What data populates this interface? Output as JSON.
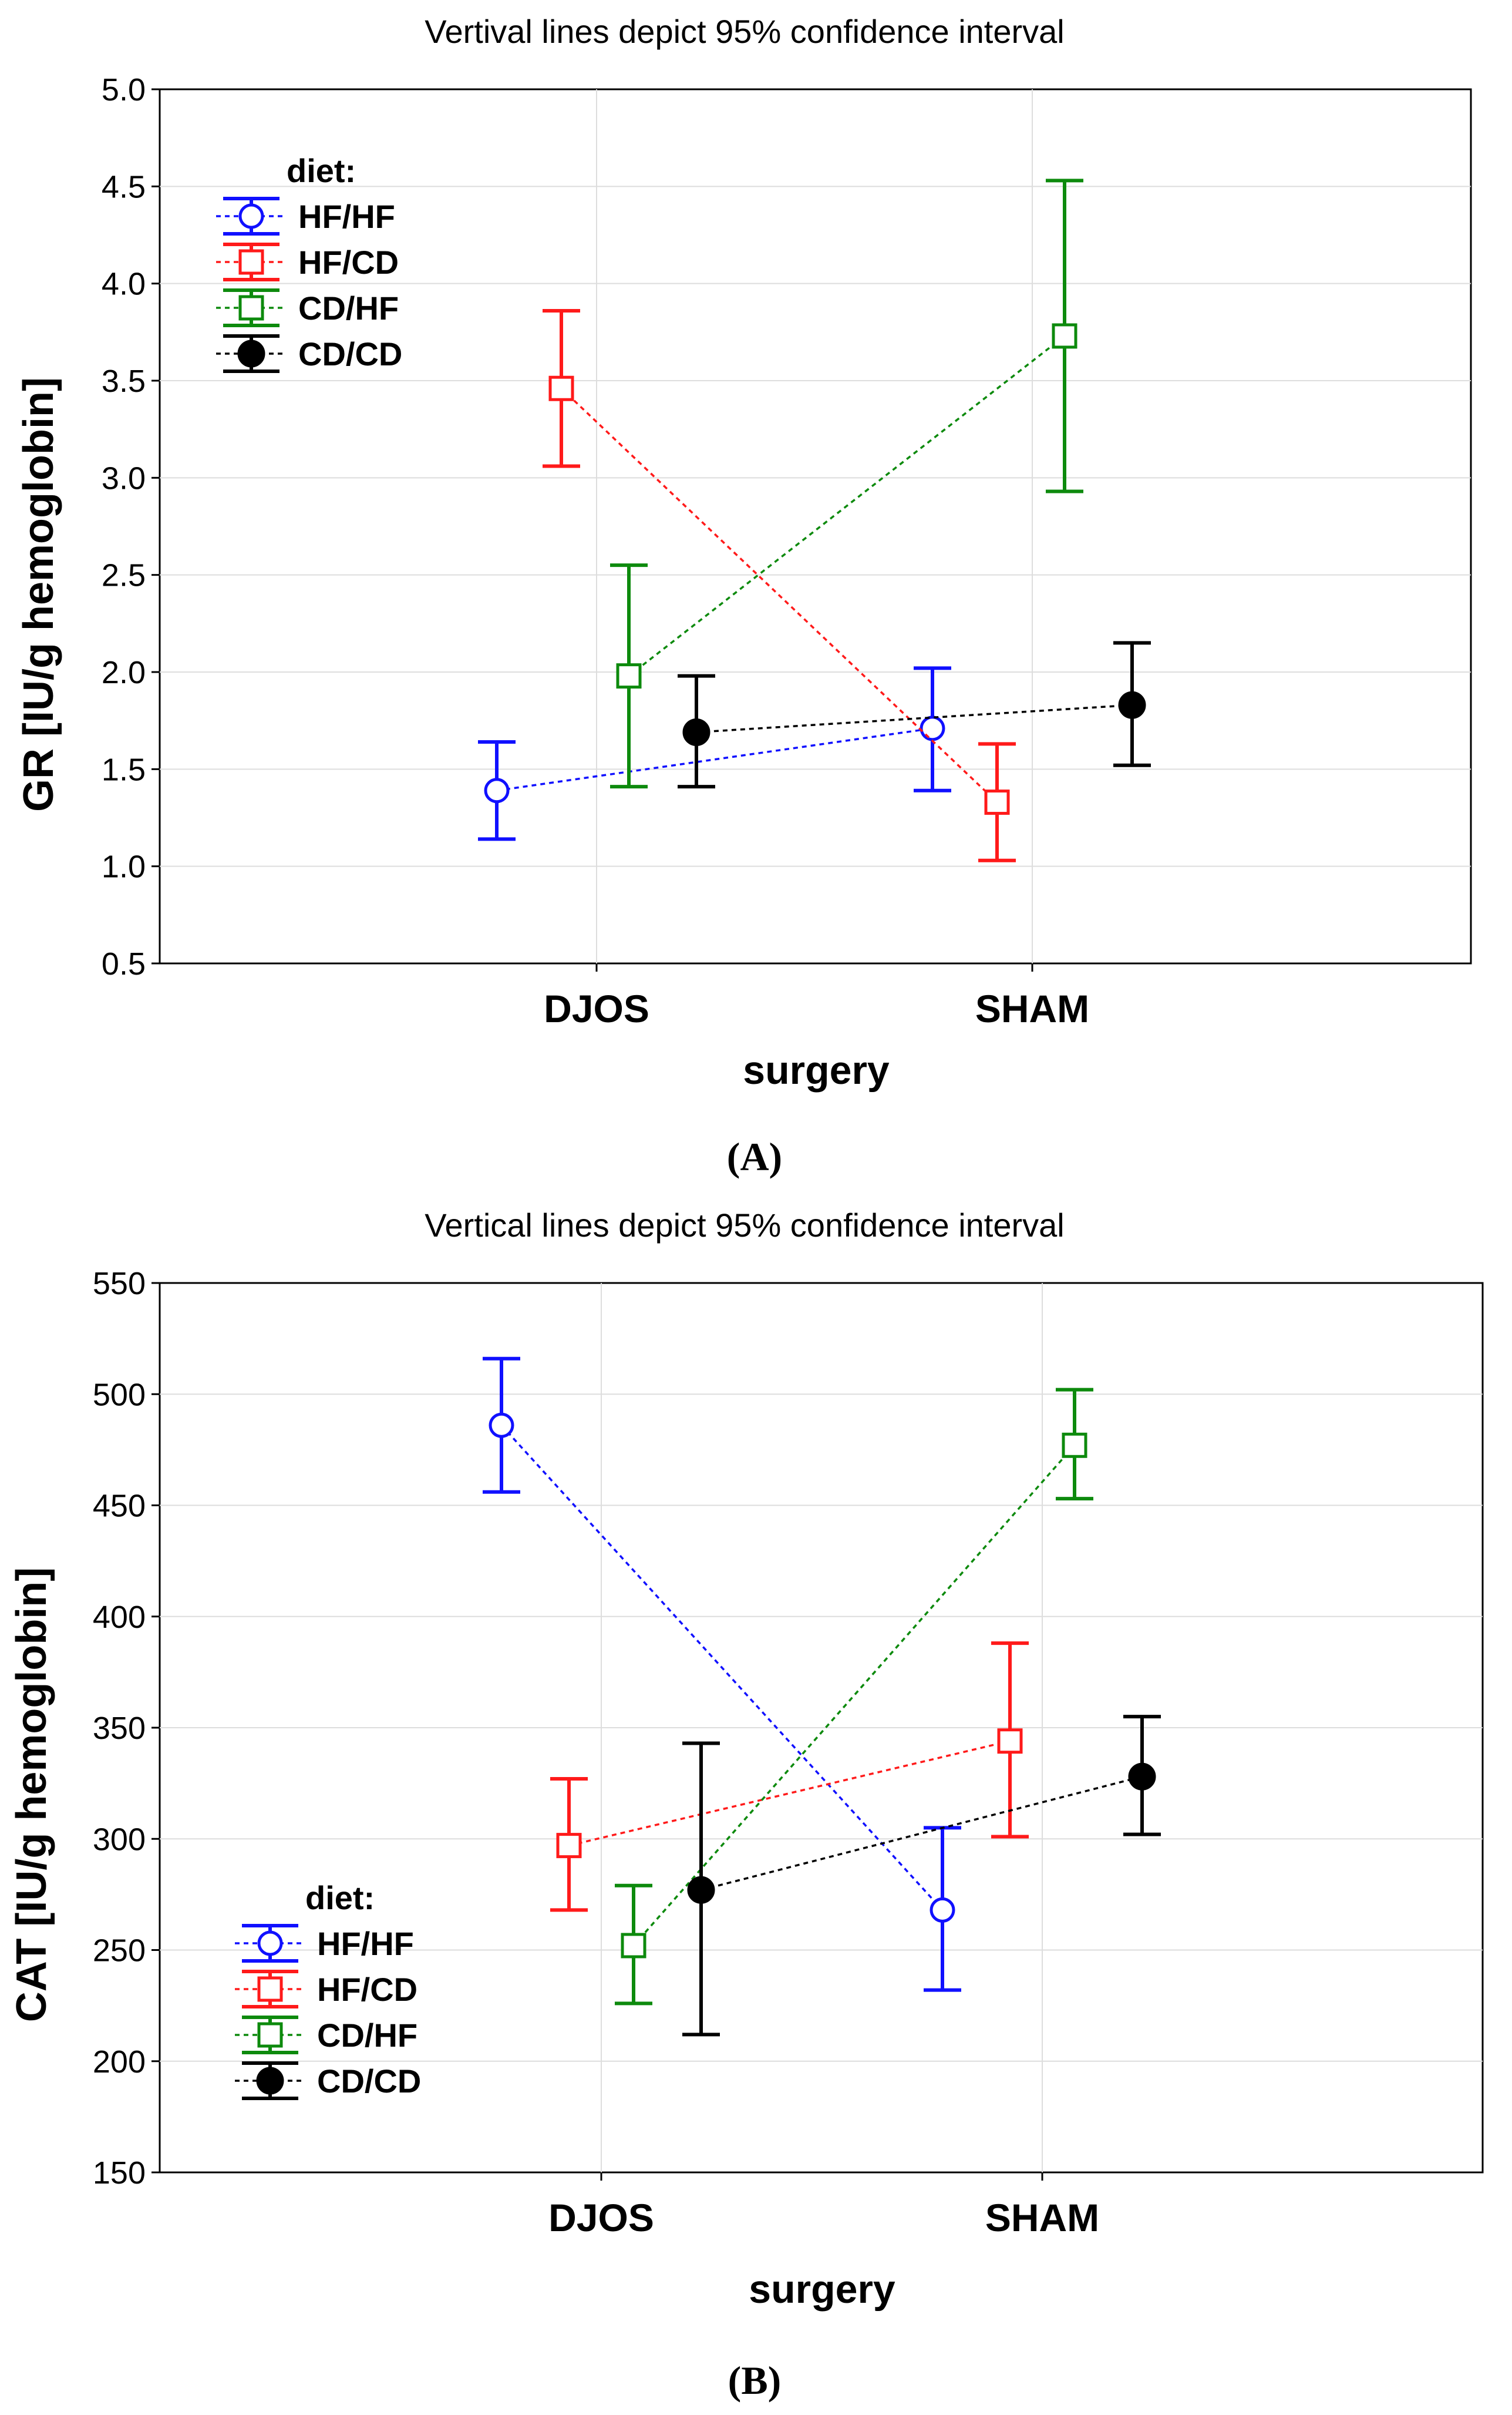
{
  "colors": {
    "HF/HF": "#1010ff",
    "HF/CD": "#ff1a1a",
    "CD/HF": "#0d8a0d",
    "CD/CD": "#000000",
    "frame": "#000000",
    "grid": "#dddddd"
  },
  "chart_data": [
    {
      "panel_label": "(A)",
      "type": "line",
      "subtitle": "Vertival lines depict 95% confidence interval",
      "xlabel": "surgery",
      "ylabel": "GR [IU/g hemoglobin]",
      "categories": [
        "DJOS",
        "SHAM"
      ],
      "ylim": [
        0.5,
        5.0
      ],
      "yticks": [
        "0.5",
        "1.0",
        "1.5",
        "2.0",
        "2.5",
        "3.0",
        "3.5",
        "4.0",
        "4.5",
        "5.0"
      ],
      "grid": true,
      "error_bars": "95% CI",
      "legend": {
        "position": "top-left",
        "title": "diet:",
        "entries": [
          "HF/HF",
          "HF/CD",
          "CD/HF",
          "CD/CD"
        ]
      },
      "series": [
        {
          "name": "HF/HF",
          "marker": "open-circle",
          "values": [
            1.39,
            1.71
          ],
          "ci_low": [
            1.14,
            1.39
          ],
          "ci_high": [
            1.64,
            2.02
          ]
        },
        {
          "name": "HF/CD",
          "marker": "open-square",
          "values": [
            3.46,
            1.33
          ],
          "ci_low": [
            3.06,
            1.03
          ],
          "ci_high": [
            3.86,
            1.63
          ]
        },
        {
          "name": "CD/HF",
          "marker": "open-square",
          "values": [
            1.98,
            3.73
          ],
          "ci_low": [
            1.41,
            2.93
          ],
          "ci_high": [
            2.55,
            4.53
          ]
        },
        {
          "name": "CD/CD",
          "marker": "filled-circle",
          "values": [
            1.69,
            1.83
          ],
          "ci_low": [
            1.41,
            1.52
          ],
          "ci_high": [
            1.98,
            2.15
          ]
        }
      ]
    },
    {
      "panel_label": "(B)",
      "type": "line",
      "subtitle": "Vertical lines depict 95% confidence interval",
      "xlabel": "surgery",
      "ylabel": "CAT [IU/g hemoglobin]",
      "categories": [
        "DJOS",
        "SHAM"
      ],
      "ylim": [
        150,
        550
      ],
      "yticks": [
        "150",
        "200",
        "250",
        "300",
        "350",
        "400",
        "450",
        "500",
        "550"
      ],
      "grid": true,
      "error_bars": "95% CI",
      "legend": {
        "position": "bottom-left",
        "title": "diet:",
        "entries": [
          "HF/HF",
          "HF/CD",
          "CD/HF",
          "CD/CD"
        ]
      },
      "series": [
        {
          "name": "HF/HF",
          "marker": "open-circle",
          "values": [
            486,
            268
          ],
          "ci_low": [
            456,
            232
          ],
          "ci_high": [
            516,
            305
          ]
        },
        {
          "name": "HF/CD",
          "marker": "open-square",
          "values": [
            297,
            344
          ],
          "ci_low": [
            268,
            301
          ],
          "ci_high": [
            327,
            388
          ]
        },
        {
          "name": "CD/HF",
          "marker": "open-square",
          "values": [
            252,
            477
          ],
          "ci_low": [
            226,
            453
          ],
          "ci_high": [
            279,
            502
          ]
        },
        {
          "name": "CD/CD",
          "marker": "filled-circle",
          "values": [
            277,
            328
          ],
          "ci_low": [
            212,
            302
          ],
          "ci_high": [
            343,
            355
          ]
        }
      ]
    }
  ]
}
